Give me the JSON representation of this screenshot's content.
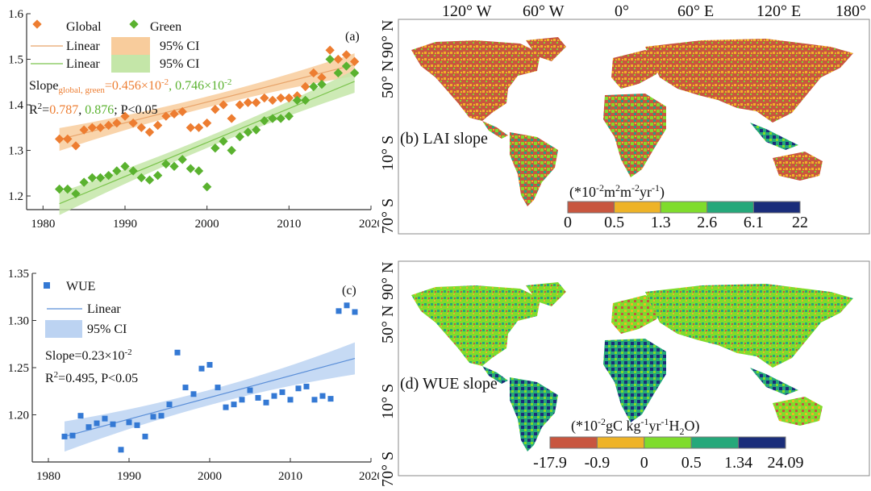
{
  "chart_data": [
    {
      "id": "a",
      "type": "scatter",
      "panel_label": "(a)",
      "xlim": [
        1978,
        2020
      ],
      "ylim": [
        1.17,
        1.6
      ],
      "xticks": [
        1980,
        1990,
        2000,
        2010,
        2020
      ],
      "yticks": [
        1.2,
        1.3,
        1.4,
        1.5,
        1.6
      ],
      "xtick_labels": [
        "1980",
        "1990",
        "2000",
        "2010",
        "2020"
      ],
      "ytick_labels": [
        "1.2",
        "1.3",
        "1.4",
        "1.5",
        "1.6"
      ],
      "colors": {
        "global": "#ed7d31",
        "green": "#5ab22f",
        "global_ci": "#f8cc9c",
        "green_ci": "#c4e6a8",
        "global_line": "#e8a46b",
        "green_line": "#7cc44e"
      },
      "x": [
        1982,
        1983,
        1984,
        1985,
        1986,
        1987,
        1988,
        1989,
        1990,
        1991,
        1992,
        1993,
        1994,
        1995,
        1996,
        1997,
        1998,
        1999,
        2000,
        2001,
        2002,
        2003,
        2004,
        2005,
        2006,
        2007,
        2008,
        2009,
        2010,
        2011,
        2012,
        2013,
        2014,
        2015,
        2016,
        2017,
        2018
      ],
      "series": [
        {
          "name": "Global",
          "values": [
            1.325,
            1.325,
            1.31,
            1.345,
            1.35,
            1.35,
            1.355,
            1.36,
            1.375,
            1.36,
            1.35,
            1.34,
            1.355,
            1.375,
            1.38,
            1.385,
            1.35,
            1.35,
            1.36,
            1.39,
            1.4,
            1.37,
            1.4,
            1.405,
            1.405,
            1.415,
            1.41,
            1.415,
            1.415,
            1.42,
            1.44,
            1.47,
            1.46,
            1.52,
            1.5,
            1.51,
            1.495
          ]
        },
        {
          "name": "Green",
          "values": [
            1.215,
            1.215,
            1.205,
            1.23,
            1.24,
            1.24,
            1.245,
            1.255,
            1.265,
            1.255,
            1.24,
            1.235,
            1.245,
            1.27,
            1.265,
            1.28,
            1.26,
            1.255,
            1.22,
            1.305,
            1.32,
            1.3,
            1.33,
            1.34,
            1.345,
            1.365,
            1.37,
            1.37,
            1.375,
            1.41,
            1.41,
            1.44,
            1.445,
            1.5,
            1.47,
            1.485,
            1.47
          ]
        }
      ],
      "fits": [
        {
          "name": "Global",
          "intercept_1982": 1.324,
          "slope": 0.00456,
          "ci_half_start": 0.025,
          "ci_half_mid": 0.012,
          "ci_half_end": 0.025
        },
        {
          "name": "Green",
          "intercept_1982": 1.183,
          "slope": 0.00746,
          "ci_half_start": 0.025,
          "ci_half_mid": 0.012,
          "ci_half_end": 0.025
        }
      ],
      "legend": {
        "global": "Global",
        "green": "Green",
        "linear_1": "Linear",
        "ci_1": "95% CI",
        "linear_2": "Linear",
        "ci_2": "95% CI"
      },
      "annotation": {
        "slope_prefix": "Slope",
        "slope_sub": "global, green",
        "slope_eq": "=",
        "slope_global": "0.456×10",
        "slope_global_exp": "-2",
        "slope_sep": ", ",
        "slope_green": "0.746×10",
        "slope_green_exp": "-2",
        "r2_prefix": "R",
        "r2_exp": "2",
        "r2_eq": "=",
        "r2_global": "0.787",
        "r2_sep": ", ",
        "r2_green": "0.876",
        "r2_tail": "; P<0.05"
      }
    },
    {
      "id": "c",
      "type": "scatter",
      "panel_label": "(c)",
      "xlim": [
        1978,
        2020
      ],
      "ylim": [
        1.15,
        1.35
      ],
      "xticks": [
        1980,
        1990,
        2000,
        2010,
        2020
      ],
      "yticks": [
        1.2,
        1.25,
        1.3,
        1.35
      ],
      "xtick_labels": [
        "1980",
        "1990",
        "2000",
        "2010",
        "2020"
      ],
      "ytick_labels": [
        "1.20",
        "1.25",
        "1.30",
        "1.35"
      ],
      "colors": {
        "points": "#3479d4",
        "line": "#5b8fd8",
        "ci": "#bcd3f2"
      },
      "x": [
        1982,
        1983,
        1984,
        1985,
        1986,
        1987,
        1988,
        1989,
        1990,
        1991,
        1992,
        1993,
        1994,
        1995,
        1996,
        1997,
        1998,
        1999,
        2000,
        2001,
        2002,
        2003,
        2004,
        2005,
        2006,
        2007,
        2008,
        2009,
        2010,
        2011,
        2012,
        2013,
        2014,
        2015,
        2016,
        2017,
        2018
      ],
      "series": [
        {
          "name": "WUE",
          "values": [
            1.177,
            1.178,
            1.199,
            1.187,
            1.191,
            1.196,
            1.19,
            1.163,
            1.192,
            1.189,
            1.177,
            1.198,
            1.199,
            1.211,
            1.266,
            1.229,
            1.222,
            1.249,
            1.253,
            1.229,
            1.208,
            1.211,
            1.216,
            1.226,
            1.218,
            1.213,
            1.22,
            1.224,
            1.216,
            1.228,
            1.23,
            1.216,
            1.22,
            1.217,
            1.31,
            1.316,
            1.309
          ]
        }
      ],
      "fits": [
        {
          "name": "WUE",
          "intercept_1982": 1.177,
          "slope": 0.0023,
          "ci_half_start": 0.016,
          "ci_half_mid": 0.008,
          "ci_half_end": 0.017
        }
      ],
      "legend": {
        "points": "WUE",
        "linear": "Linear",
        "ci": "95% CI"
      },
      "annotation": {
        "slope_text": "Slope=0.23×10",
        "slope_exp": "-2",
        "r2_prefix": "R",
        "r2_exp": "2",
        "r2_tail": "=0.495, P<0.05"
      }
    }
  ],
  "maps": {
    "top_longitudes": [
      "120° W",
      "60° W",
      "0°",
      "60° E",
      "120° E",
      "180°"
    ],
    "lat_labels": [
      "90° N",
      "50° N",
      "10° S",
      "70° S"
    ],
    "b": {
      "title": "(b) LAI slope",
      "unit_parts": [
        "(*10",
        "-2",
        "m",
        "2",
        "m",
        "-2",
        "yr",
        "-1",
        ")"
      ],
      "colors": [
        "#c8563f",
        "#eeb327",
        "#7fdc2c",
        "#25a87a",
        "#1a2d7a"
      ],
      "ticks": [
        "0",
        "0.5",
        "1.3",
        "2.6",
        "6.1",
        "22"
      ]
    },
    "d": {
      "title": "(d) WUE slope",
      "unit_parts": [
        "(*10",
        "-2",
        "gC kg",
        "-1",
        "yr",
        "-1",
        "H",
        "2",
        "O)"
      ],
      "colors": [
        "#c8563f",
        "#eeb327",
        "#7fdc2c",
        "#25a87a",
        "#1a2d7a"
      ],
      "ticks": [
        "-17.9",
        "-0.9",
        "0",
        "0.5",
        "1.34",
        "24.09"
      ]
    }
  }
}
